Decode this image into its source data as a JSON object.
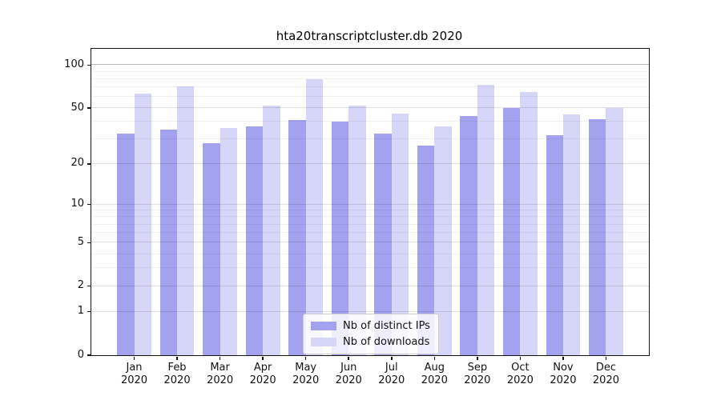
{
  "title": "hta20transcriptcluster.db 2020",
  "chart_data": {
    "type": "bar",
    "y_scale": "log1p",
    "categories": [
      "Jan",
      "Feb",
      "Mar",
      "Apr",
      "May",
      "Jun",
      "Jul",
      "Aug",
      "Sep",
      "Oct",
      "Nov",
      "Dec"
    ],
    "year_label": "2020",
    "series": [
      {
        "name": "Nb of distinct IPs",
        "color": "#a2a2ef",
        "values": [
          33,
          35,
          28,
          37,
          41,
          40,
          33,
          27,
          44,
          50,
          32,
          42
        ]
      },
      {
        "name": "Nb of downloads",
        "color": "#d6d6f8",
        "values": [
          63,
          71,
          36,
          52,
          80,
          52,
          46,
          37,
          73,
          65,
          45,
          50
        ]
      }
    ],
    "y_major_ticks": [
      0,
      1,
      2,
      5,
      10,
      20,
      50,
      100
    ],
    "y_minor_gridlines": [
      3,
      4,
      6,
      7,
      8,
      9,
      30,
      40,
      60,
      70,
      80,
      90
    ],
    "ylim": [
      0,
      130
    ],
    "grid": "horizontal-only",
    "legend_position": "bottom-center-inside",
    "xlabel": "",
    "ylabel": ""
  }
}
